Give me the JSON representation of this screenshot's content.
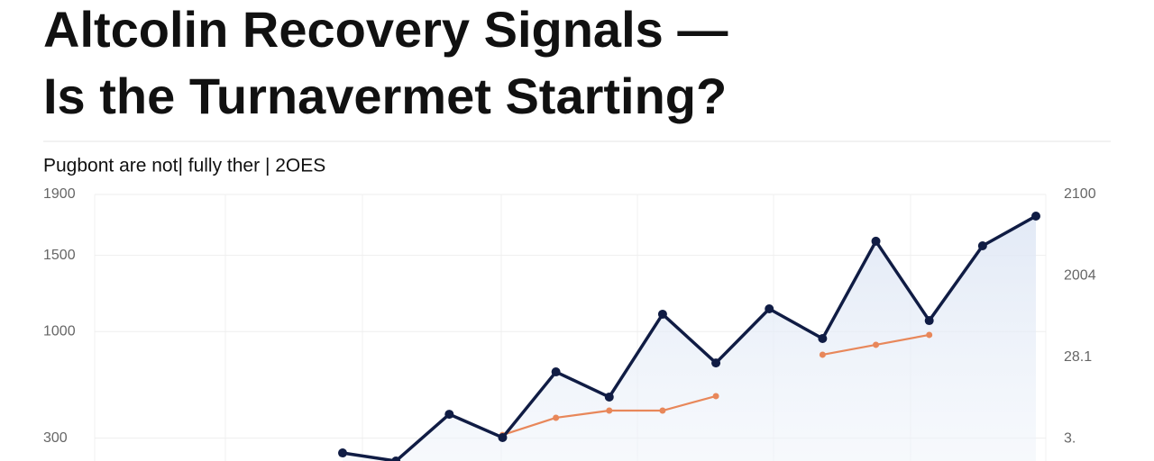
{
  "chart_data": {
    "type": "line",
    "title": [
      "Altcolin Recovery Signals —",
      "Is the Turnavermet Starting?"
    ],
    "subtitle": "Pugbont are not| fully ther | 2OES",
    "categories": [
      null,
      null,
      null,
      null,
      null,
      null,
      null,
      null,
      null,
      null,
      null,
      null,
      null,
      null
    ],
    "series": [
      {
        "color": "#101c44",
        "values": [
          203,
          150,
          457,
          304,
          735,
          570,
          1114,
          794,
          1149,
          954,
          1593,
          1072,
          1563,
          1758
        ]
      },
      {
        "color": "#e8875a",
        "values": [
          null,
          null,
          null,
          321,
          434,
          481,
          481,
          576,
          null,
          848,
          913,
          978,
          null,
          null
        ]
      }
    ],
    "ylim": [
      150,
      1900
    ],
    "yticks": [
      1900,
      1500,
      1000,
      300
    ],
    "right_axis_labels": [
      "2100",
      "2004",
      "28.1",
      "3."
    ],
    "grid": true
  }
}
